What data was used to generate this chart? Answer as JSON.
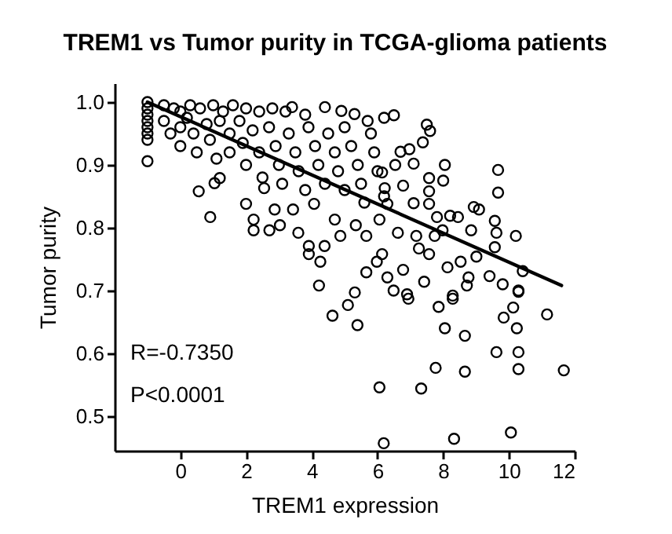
{
  "chart_data": {
    "type": "scatter",
    "title": "TREM1 vs Tumor purity in TCGA-glioma patients",
    "xlabel": "TREM1 expression",
    "ylabel": "Tumor purity",
    "annotations": [
      "R=-0.7350",
      "P<0.0001"
    ],
    "xlim": [
      -2,
      12
    ],
    "xticks": [
      0,
      2,
      4,
      6,
      8,
      10,
      12
    ],
    "ylim": [
      0.445,
      1.03
    ],
    "yticks": [
      0.5,
      0.6,
      0.7,
      0.8,
      0.9,
      {
        "value": 1,
        "label": "1.0"
      }
    ],
    "grid": false,
    "marker": "circle",
    "series": [
      {
        "color": "#000000",
        "x": [
          -1,
          -1,
          -1,
          -1,
          -1,
          -1,
          -1,
          -1,
          -0.5,
          -0.2,
          0,
          0.3,
          0.6,
          1.0,
          1.3,
          1.6,
          2.0,
          2.4,
          2.8,
          3.2,
          3.4,
          3.8,
          4.4,
          4.9,
          5.3,
          5.7,
          6.2,
          6.5,
          7.5,
          7.6,
          -0.5,
          -0.3,
          0,
          0,
          0.2,
          0.4,
          0.5,
          0.8,
          0.9,
          1.1,
          1.2,
          1.5,
          1.5,
          1.8,
          1.9,
          2.0,
          2.2,
          2.4,
          2.5,
          2.7,
          2.9,
          3.0,
          3.1,
          3.3,
          3.5,
          3.6,
          3.8,
          3.9,
          4.1,
          4.2,
          4.4,
          4.5,
          4.7,
          4.8,
          5.0,
          5.0,
          5.2,
          5.4,
          5.5,
          5.6,
          5.8,
          5.9,
          6.0,
          6.2,
          0.56,
          0.91,
          2.0,
          2.23,
          2.23,
          2.71,
          3.03,
          3.59,
          3.91,
          3.91,
          4.26,
          4.22,
          5.66,
          5.98,
          4.39,
          4.87,
          5.66,
          4.7,
          5.34,
          2.87,
          3.43,
          4.07,
          2.55,
          1.04,
          1.2,
          9.67,
          9.67,
          10.21,
          10.42,
          10.29,
          7.38,
          6.97,
          8.05,
          8.0,
          8.93,
          9.09,
          9.57,
          9.62,
          9.57,
          8.85,
          9.01,
          8.53,
          8.77,
          9.41,
          9.81,
          8.29,
          7.42,
          6.78,
          6.3,
          6.49,
          6.9,
          8.13,
          7.57,
          7.26,
          7.18,
          6.62,
          6.14,
          7.74,
          8.21,
          8.45,
          7.98,
          7.57,
          7.1,
          6.78,
          7.57,
          7.57,
          7.81,
          6.54,
          7.1,
          6.7,
          6.14,
          6.22,
          6.3,
          6.06,
          5.31,
          5.1,
          4.63,
          5.39,
          6.06,
          6.19,
          6.94,
          7.86,
          8.29,
          8.72,
          8.05,
          8.66,
          10.29,
          10.13,
          9.84,
          10.24,
          11.16,
          9.62,
          10.29,
          10.29,
          7.77,
          8.66,
          11.67,
          7.33,
          8.33,
          10.06
        ],
        "values": [
          1.0,
          0.99,
          0.98,
          0.97,
          0.96,
          0.95,
          0.94,
          0.906,
          0.995,
          0.99,
          0.985,
          0.995,
          0.99,
          0.995,
          0.985,
          0.995,
          0.99,
          0.985,
          0.99,
          0.985,
          0.992,
          0.98,
          0.992,
          0.986,
          0.981,
          0.97,
          0.975,
          0.979,
          0.964,
          0.954,
          0.97,
          0.95,
          0.96,
          0.93,
          0.975,
          0.95,
          0.92,
          0.965,
          0.94,
          0.91,
          0.97,
          0.95,
          0.92,
          0.97,
          0.935,
          0.9,
          0.955,
          0.92,
          0.88,
          0.96,
          0.93,
          0.9,
          0.87,
          0.95,
          0.92,
          0.89,
          0.86,
          0.96,
          0.93,
          0.9,
          0.87,
          0.95,
          0.92,
          0.89,
          0.96,
          0.86,
          0.93,
          0.9,
          0.87,
          0.84,
          0.95,
          0.92,
          0.89,
          0.85,
          0.858,
          0.817,
          0.838,
          0.813,
          0.796,
          0.796,
          0.804,
          0.792,
          0.771,
          0.758,
          0.746,
          0.708,
          0.729,
          0.746,
          0.771,
          0.787,
          0.787,
          0.813,
          0.804,
          0.829,
          0.829,
          0.838,
          0.863,
          0.871,
          0.879,
          0.892,
          0.856,
          0.787,
          0.731,
          0.7,
          0.936,
          0.925,
          0.9,
          0.875,
          0.833,
          0.829,
          0.811,
          0.792,
          0.769,
          0.796,
          0.754,
          0.746,
          0.721,
          0.723,
          0.71,
          0.692,
          0.714,
          0.733,
          0.721,
          0.7,
          0.694,
          0.737,
          0.758,
          0.767,
          0.787,
          0.792,
          0.758,
          0.787,
          0.819,
          0.817,
          0.796,
          0.838,
          0.839,
          0.867,
          0.879,
          0.858,
          0.817,
          0.9,
          0.902,
          0.921,
          0.888,
          0.863,
          0.838,
          0.813,
          0.697,
          0.677,
          0.66,
          0.645,
          0.546,
          0.457,
          0.687,
          0.674,
          0.687,
          0.708,
          0.64,
          0.628,
          0.698,
          0.673,
          0.657,
          0.64,
          0.662,
          0.602,
          0.602,
          0.575,
          0.577,
          0.571,
          0.573,
          0.544,
          0.464,
          0.474
        ]
      },
      {
        "type": "line",
        "marker": "none",
        "color": "#000000",
        "x": [
          -1,
          11.6
        ],
        "values": [
          1.0,
          0.708
        ]
      }
    ]
  }
}
